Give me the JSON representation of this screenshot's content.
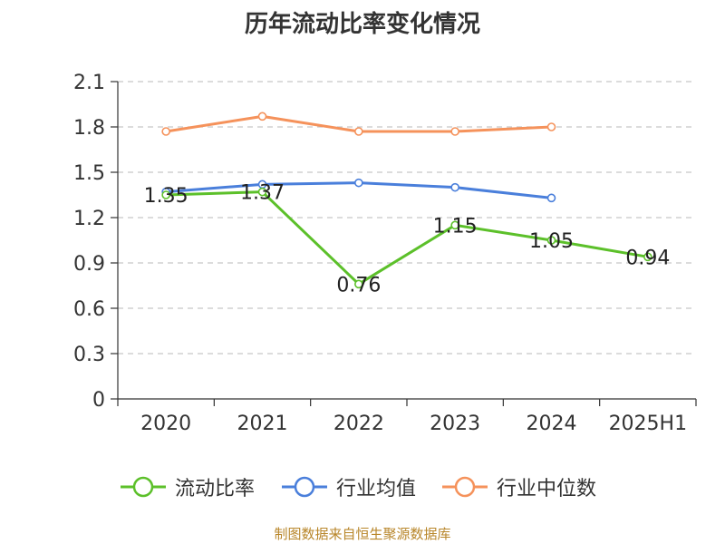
{
  "title": "历年流动比率变化情况",
  "source": "制图数据来自恒生聚源数据库",
  "chart_data": {
    "type": "line",
    "title": "历年流动比率变化情况",
    "categories": [
      "2020",
      "2021",
      "2022",
      "2023",
      "2024",
      "2025H1"
    ],
    "ylim": [
      0,
      2.1
    ],
    "yticks": [
      "0",
      "0.3",
      "0.6",
      "0.9",
      "1.2",
      "1.5",
      "1.8",
      "2.1"
    ],
    "grid": true,
    "legend_position": "bottom",
    "series": [
      {
        "name": "流动比率",
        "color": "#5cc02a",
        "values": [
          1.35,
          1.37,
          0.76,
          1.15,
          1.05,
          0.94
        ],
        "labels": [
          "1.35",
          "1.37",
          "0.76",
          "1.15",
          "1.05",
          "0.94"
        ]
      },
      {
        "name": "行业均值",
        "color": "#4a7fdb",
        "values": [
          1.37,
          1.42,
          1.43,
          1.4,
          1.33,
          null
        ]
      },
      {
        "name": "行业中位数",
        "color": "#f5925b",
        "values": [
          1.77,
          1.87,
          1.77,
          1.77,
          1.8,
          null
        ]
      }
    ]
  }
}
